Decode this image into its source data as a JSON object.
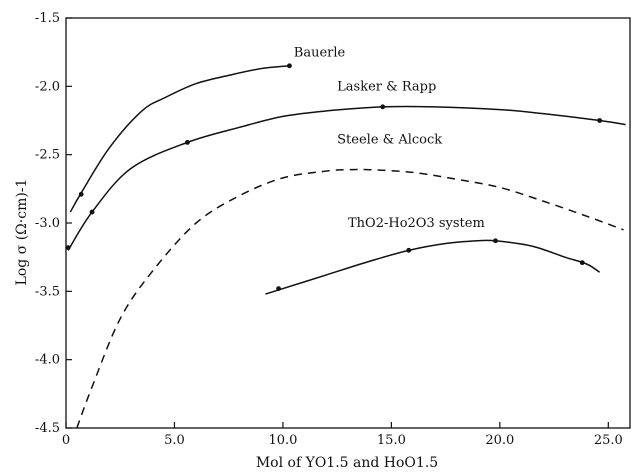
{
  "chart_data": {
    "type": "line",
    "title": "",
    "xlabel": "Mol of YO1.5 and HoO1.5",
    "ylabel": "Log σ (Ω·cm)-1",
    "xlim": [
      0,
      26
    ],
    "ylim": [
      -4.5,
      -1.5
    ],
    "x_ticks": [
      "0",
      "5.0",
      "10.0",
      "15.0",
      "20.0",
      "25.0"
    ],
    "y_ticks": [
      "-1.5",
      "-2.0",
      "-2.5",
      "-3.0",
      "-3.5",
      "-4.0",
      "-4.5"
    ],
    "grid": false,
    "legend": "none (curves labeled directly)",
    "series": [
      {
        "name": "Bauerle",
        "style": "solid",
        "x": [
          0.2,
          0.7,
          2.0,
          3.5,
          4.6,
          6.0,
          7.5,
          9.0,
          10.3
        ],
        "y": [
          -2.92,
          -2.78,
          -2.45,
          -2.18,
          -2.08,
          -1.98,
          -1.92,
          -1.87,
          -1.85
        ],
        "markers": [
          [
            0.7,
            -2.79
          ],
          [
            10.3,
            -1.85
          ]
        ]
      },
      {
        "name": "Lasker & Rapp",
        "style": "solid",
        "x": [
          0.1,
          1.2,
          3.0,
          5.6,
          8.0,
          10.0,
          12.0,
          14.6,
          17.0,
          20.0,
          22.0,
          24.6,
          25.8
        ],
        "y": [
          -3.2,
          -2.92,
          -2.6,
          -2.41,
          -2.3,
          -2.22,
          -2.18,
          -2.15,
          -2.15,
          -2.17,
          -2.2,
          -2.25,
          -2.28
        ],
        "markers": [
          [
            0.1,
            -3.18
          ],
          [
            1.2,
            -2.92
          ],
          [
            5.6,
            -2.41
          ],
          [
            14.6,
            -2.15
          ],
          [
            24.6,
            -2.25
          ]
        ]
      },
      {
        "name": "Steele & Alcock",
        "style": "dashed",
        "x": [
          0.5,
          1.2,
          2.5,
          4.0,
          6.0,
          8.0,
          10.0,
          12.0,
          13.0,
          14.0,
          16.0,
          18.0,
          20.0,
          22.0,
          24.0,
          25.7
        ],
        "y": [
          -4.5,
          -4.2,
          -3.7,
          -3.35,
          -3.0,
          -2.8,
          -2.67,
          -2.62,
          -2.61,
          -2.61,
          -2.63,
          -2.68,
          -2.74,
          -2.84,
          -2.95,
          -3.05
        ]
      },
      {
        "name": "ThO2-Ho2O3 system",
        "style": "solid",
        "x": [
          9.2,
          9.8,
          12.0,
          14.0,
          15.8,
          17.5,
          19.0,
          19.8,
          21.5,
          23.0,
          24.0,
          24.6
        ],
        "y": [
          -3.52,
          -3.49,
          -3.38,
          -3.28,
          -3.2,
          -3.15,
          -3.13,
          -3.13,
          -3.17,
          -3.25,
          -3.3,
          -3.36
        ],
        "markers": [
          [
            9.8,
            -3.48
          ],
          [
            15.8,
            -3.2
          ],
          [
            19.8,
            -3.13
          ],
          [
            23.8,
            -3.29
          ]
        ]
      }
    ],
    "series_labels": [
      {
        "text": "Bauerle",
        "x": 10.5,
        "y": -1.78
      },
      {
        "text": "Lasker & Rapp",
        "x": 12.5,
        "y": -2.03
      },
      {
        "text": "Steele & Alcock",
        "x": 12.5,
        "y": -2.42
      },
      {
        "text": "ThO2-Ho2O3 system",
        "x": 13.0,
        "y": -3.03
      }
    ]
  }
}
